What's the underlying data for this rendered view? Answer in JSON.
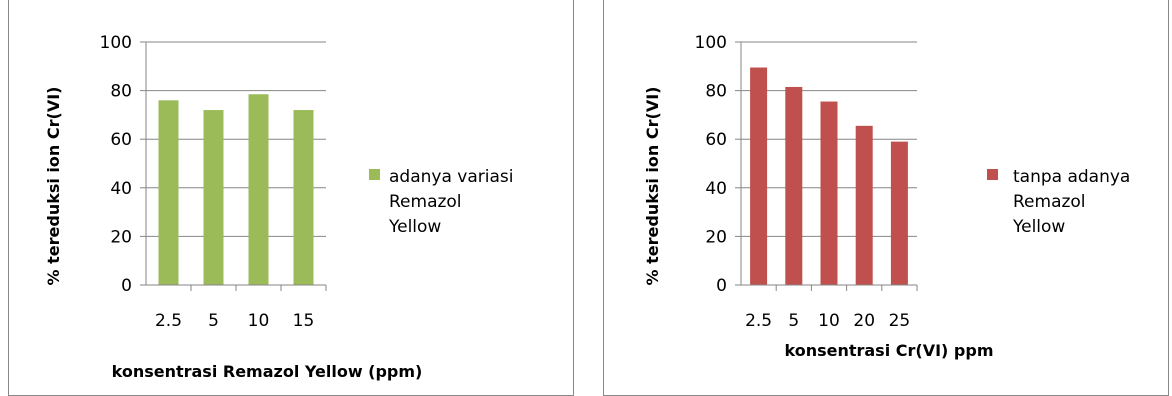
{
  "chart_data": [
    {
      "type": "bar",
      "categories": [
        "2.5",
        "5",
        "10",
        "15"
      ],
      "series": [
        {
          "name": "adanya variasi Remazol Yellow",
          "values": [
            76,
            72,
            78.5,
            72
          ],
          "color": "#9BBB59"
        }
      ],
      "xlabel": "konsentrasi Remazol Yellow (ppm)",
      "ylabel": "% tereduksi ion Cr(VI)",
      "ylim": [
        0,
        100
      ],
      "yticks": [
        "0",
        "20",
        "40",
        "60",
        "80",
        "100"
      ],
      "grid": true,
      "legend_position": "right",
      "legend_lines": [
        "adanya variasi",
        "Remazol",
        "Yellow"
      ]
    },
    {
      "type": "bar",
      "categories": [
        "2.5",
        "5",
        "10",
        "20",
        "25"
      ],
      "series": [
        {
          "name": "tanpa adanya Remazol Yellow",
          "values": [
            89.5,
            81.5,
            75.5,
            65.5,
            59
          ],
          "color": "#C0504D"
        }
      ],
      "xlabel": "konsentrasi Cr(VI) ppm",
      "ylabel": "% tereduksi ion Cr(VI)",
      "ylim": [
        0,
        100
      ],
      "yticks": [
        "0",
        "20",
        "40",
        "60",
        "80",
        "100"
      ],
      "grid": true,
      "legend_position": "right",
      "legend_lines": [
        "tanpa adanya",
        "Remazol",
        "Yellow"
      ]
    }
  ]
}
